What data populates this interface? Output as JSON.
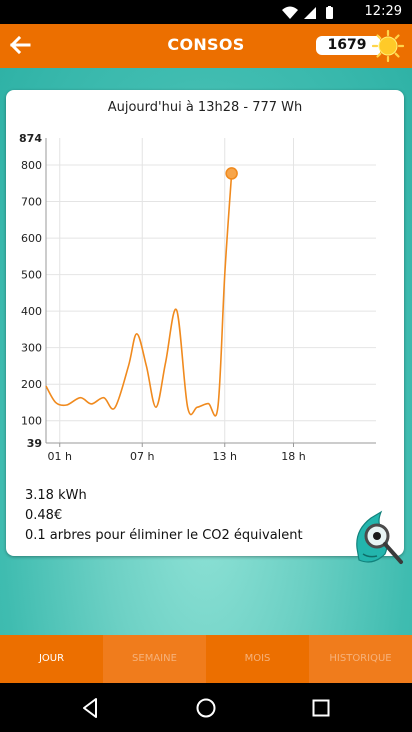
{
  "status_bar": {
    "time": "12:29"
  },
  "app_bar": {
    "title": "CONSOS",
    "counter": "1679"
  },
  "chart_data": {
    "type": "line",
    "title": "Aujourd'hui à 13h28 - 777 Wh",
    "x_tick_labels": [
      "01 h",
      "07 h",
      "13 h",
      "18 h"
    ],
    "x_tick_hours": [
      1,
      7,
      13,
      18
    ],
    "xlim": [
      0,
      24
    ],
    "y_tick_labels": [
      "874",
      "800",
      "700",
      "600",
      "500",
      "400",
      "300",
      "200",
      "100",
      "39"
    ],
    "y_tick_values": [
      874,
      800,
      700,
      600,
      500,
      400,
      300,
      200,
      100,
      39
    ],
    "ylim": [
      39,
      874
    ],
    "grid": true,
    "series": [
      {
        "x": [
          0,
          0.7,
          1.5,
          2.5,
          3.3,
          4.2,
          5.0,
          6.0,
          6.6,
          7.3,
          8.0,
          8.7,
          9.5,
          10.3,
          11.0,
          11.8,
          12.5,
          13.0,
          13.5
        ],
        "y": [
          195,
          150,
          143,
          163,
          146,
          163,
          135,
          250,
          338,
          250,
          137,
          260,
          403,
          137,
          137,
          147,
          137,
          500,
          777
        ]
      }
    ],
    "highlight_point": {
      "x": 13.5,
      "y": 777
    },
    "line_color": "#f08a1e"
  },
  "stats": {
    "energy": "3.18 kWh",
    "cost": "0.48€",
    "co2": "0.1 arbres pour éliminer le CO2 équivalent"
  },
  "tabs": [
    {
      "label": "JOUR",
      "active": true
    },
    {
      "label": "SEMAINE",
      "active": false
    },
    {
      "label": "MOIS",
      "active": false
    },
    {
      "label": "HISTORIQUE",
      "active": false
    }
  ],
  "colors": {
    "app_bar": "#ec6f00",
    "tab_alt": "#f07c1c",
    "content": "#3fbcb0"
  },
  "icons": {
    "back": "arrow-left-icon",
    "sun": "sun-icon",
    "mascot": "magnifier-mascot-icon"
  }
}
